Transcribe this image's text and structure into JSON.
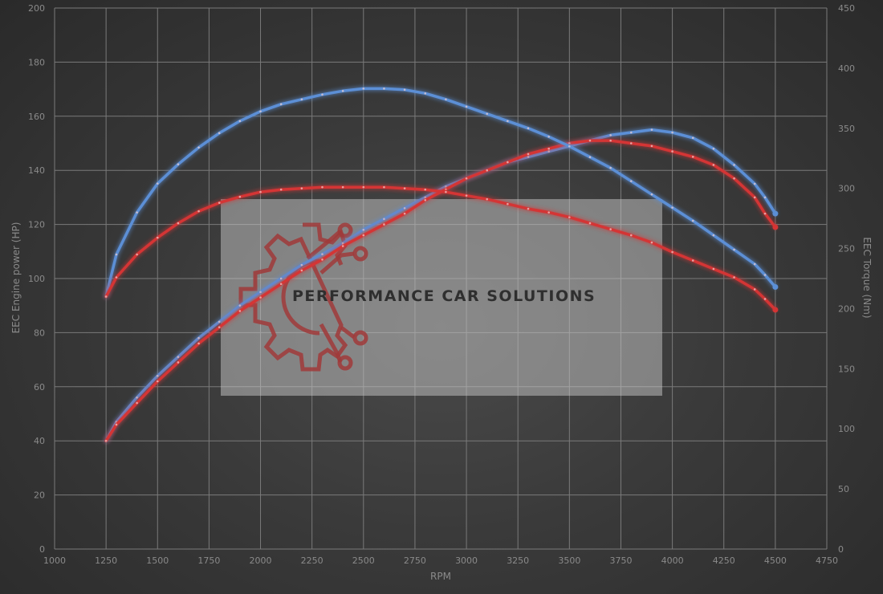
{
  "chart_data": {
    "type": "line",
    "xlabel": "RPM",
    "ylabel": "EEC Engine power (HP)",
    "y2label": "EEC Torque (Nm)",
    "xlim": [
      1000,
      4750
    ],
    "ylim": [
      0,
      200
    ],
    "y2lim": [
      0,
      450
    ],
    "x_ticks": [
      1000,
      1250,
      1500,
      1750,
      2000,
      2250,
      2500,
      2750,
      3000,
      3250,
      3500,
      3750,
      4000,
      4250,
      4500,
      4750
    ],
    "y_ticks": [
      0,
      20,
      40,
      60,
      80,
      100,
      120,
      140,
      160,
      180,
      200
    ],
    "y2_ticks": [
      0,
      50,
      100,
      150,
      200,
      250,
      300,
      350,
      400,
      450
    ],
    "grid": true,
    "colors": {
      "blue": "#5b8fd6",
      "red": "#d43434",
      "watermark_red": "#a03a3a"
    },
    "series": [
      {
        "axis": "left",
        "color": "#5b8fd6",
        "x": [
          1250,
          1300,
          1400,
          1500,
          1600,
          1700,
          1800,
          1900,
          2000,
          2100,
          2200,
          2300,
          2400,
          2500,
          2600,
          2700,
          2800,
          2900,
          3000,
          3100,
          3200,
          3300,
          3400,
          3500,
          3600,
          3700,
          3800,
          3900,
          4000,
          4100,
          4200,
          4300,
          4400,
          4450,
          4500
        ],
        "values": [
          40,
          47,
          56,
          64,
          71,
          78,
          84,
          90,
          95,
          100,
          105,
          109,
          113,
          118,
          122,
          126,
          130,
          134,
          137,
          140,
          143,
          145,
          147,
          149,
          151,
          153,
          154,
          155,
          154,
          152,
          148,
          142,
          135,
          130,
          124
        ]
      },
      {
        "axis": "left",
        "color": "#d43434",
        "x": [
          1250,
          1300,
          1400,
          1500,
          1600,
          1700,
          1800,
          1900,
          2000,
          2100,
          2200,
          2300,
          2400,
          2500,
          2600,
          2700,
          2800,
          2900,
          3000,
          3100,
          3200,
          3300,
          3400,
          3500,
          3600,
          3700,
          3800,
          3900,
          4000,
          4100,
          4200,
          4300,
          4400,
          4450,
          4500
        ],
        "values": [
          40,
          46,
          54,
          62,
          69,
          76,
          82,
          88,
          93,
          98,
          103,
          107,
          112,
          116,
          120,
          124,
          129,
          133,
          137,
          140,
          143,
          146,
          148,
          150,
          151,
          151,
          150,
          149,
          147,
          145,
          142,
          137,
          130,
          124,
          119
        ]
      },
      {
        "axis": "right",
        "color": "#5b8fd6",
        "x": [
          1250,
          1300,
          1400,
          1500,
          1600,
          1700,
          1800,
          1900,
          2000,
          2100,
          2200,
          2300,
          2400,
          2500,
          2600,
          2700,
          2800,
          2900,
          3000,
          3100,
          3200,
          3300,
          3400,
          3500,
          3600,
          3700,
          3800,
          3900,
          4000,
          4100,
          4200,
          4300,
          4400,
          4450,
          4500
        ],
        "values": [
          210,
          245,
          280,
          304,
          320,
          334,
          346,
          356,
          364,
          370,
          374,
          378,
          381,
          383,
          383,
          382,
          379,
          374,
          368,
          362,
          356,
          350,
          343,
          335,
          326,
          317,
          306,
          295,
          284,
          273,
          261,
          249,
          237,
          228,
          218
        ]
      },
      {
        "axis": "right",
        "color": "#d43434",
        "x": [
          1250,
          1300,
          1400,
          1500,
          1600,
          1700,
          1800,
          1900,
          2000,
          2100,
          2200,
          2300,
          2400,
          2500,
          2600,
          2700,
          2800,
          2900,
          3000,
          3100,
          3200,
          3300,
          3400,
          3500,
          3600,
          3700,
          3800,
          3900,
          4000,
          4100,
          4200,
          4300,
          4400,
          4450,
          4500
        ],
        "values": [
          210,
          226,
          245,
          259,
          271,
          281,
          288,
          293,
          297,
          299,
          300,
          301,
          301,
          301,
          301,
          300,
          299,
          297,
          294,
          291,
          287,
          283,
          280,
          276,
          271,
          266,
          261,
          255,
          247,
          240,
          233,
          226,
          216,
          208,
          199
        ]
      }
    ]
  },
  "watermark": {
    "text": "PERFORMANCE CAR SOLUTIONS",
    "icon": "gear-circuit-logo-icon"
  }
}
